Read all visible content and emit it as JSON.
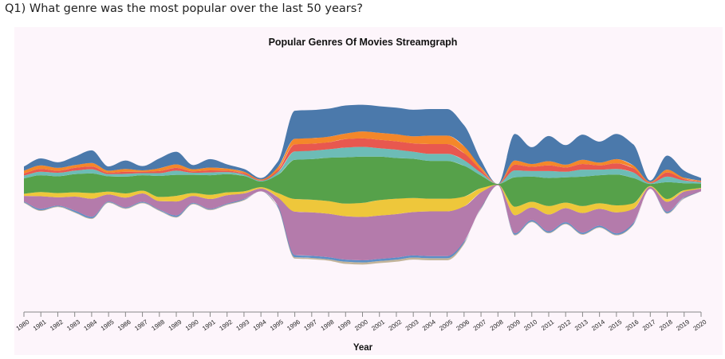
{
  "question": "Q1) What genre was the most popular over the last 50 years?",
  "chart_data": {
    "type": "streamgraph",
    "title": "Popular Genres Of Movies Streamgraph",
    "xlabel": "Year",
    "ylabel": "",
    "legend": "none",
    "grid": false,
    "x": [
      1980,
      1981,
      1982,
      1983,
      1984,
      1985,
      1986,
      1987,
      1988,
      1989,
      1990,
      1991,
      1992,
      1993,
      1994,
      1995,
      1996,
      1997,
      1998,
      1999,
      2000,
      2001,
      2002,
      2003,
      2004,
      2005,
      2006,
      2007,
      2008,
      2009,
      2010,
      2011,
      2012,
      2013,
      2014,
      2015,
      2016,
      2017,
      2018,
      2019,
      2020
    ],
    "series": [
      {
        "color": "#c2b49a",
        "values": [
          1,
          1,
          1,
          1,
          1,
          1,
          1,
          1,
          1,
          1,
          1,
          1,
          1,
          1,
          0,
          1,
          2,
          2,
          2,
          3,
          3,
          3,
          3,
          3,
          3,
          3,
          2,
          1,
          0,
          1,
          1,
          1,
          1,
          1,
          1,
          1,
          1,
          0,
          1,
          1,
          0
        ]
      },
      {
        "color": "#5b8fc7",
        "values": [
          1,
          2,
          1,
          2,
          2,
          1,
          1,
          1,
          1,
          2,
          1,
          1,
          1,
          1,
          0,
          2,
          3,
          3,
          3,
          3,
          3,
          3,
          3,
          3,
          3,
          3,
          2,
          1,
          0,
          2,
          2,
          2,
          2,
          2,
          2,
          2,
          2,
          0,
          2,
          1,
          0
        ]
      },
      {
        "color": "#b47bab",
        "values": [
          8,
          18,
          12,
          20,
          26,
          10,
          14,
          12,
          12,
          20,
          10,
          14,
          12,
          8,
          4,
          12,
          62,
          62,
          62,
          62,
          62,
          62,
          62,
          62,
          64,
          64,
          50,
          22,
          1,
          26,
          18,
          24,
          20,
          28,
          24,
          30,
          20,
          3,
          14,
          8,
          4
        ]
      },
      {
        "color": "#eec73b",
        "values": [
          3,
          6,
          6,
          6,
          8,
          4,
          6,
          4,
          6,
          8,
          4,
          6,
          4,
          3,
          2,
          6,
          18,
          18,
          18,
          18,
          20,
          22,
          22,
          20,
          18,
          18,
          14,
          6,
          0,
          12,
          8,
          12,
          8,
          10,
          8,
          10,
          8,
          1,
          4,
          2,
          1
        ]
      },
      {
        "color": "#56a14a",
        "values": [
          22,
          24,
          24,
          26,
          28,
          22,
          24,
          22,
          30,
          30,
          26,
          28,
          26,
          22,
          8,
          26,
          56,
          58,
          62,
          66,
          66,
          62,
          58,
          56,
          54,
          54,
          44,
          18,
          1,
          42,
          36,
          40,
          36,
          42,
          40,
          44,
          36,
          3,
          24,
          10,
          6
        ]
      },
      {
        "color": "#6dbcb6",
        "values": [
          4,
          5,
          5,
          5,
          6,
          3,
          4,
          3,
          4,
          6,
          3,
          4,
          3,
          2,
          1,
          4,
          12,
          12,
          12,
          14,
          14,
          12,
          12,
          10,
          10,
          10,
          8,
          4,
          0,
          10,
          8,
          10,
          8,
          10,
          8,
          8,
          8,
          1,
          8,
          4,
          2
        ]
      },
      {
        "color": "#e8584f",
        "values": [
          3,
          4,
          3,
          4,
          4,
          2,
          3,
          2,
          3,
          4,
          2,
          3,
          2,
          2,
          1,
          3,
          10,
          10,
          10,
          12,
          12,
          12,
          12,
          12,
          14,
          14,
          10,
          4,
          0,
          8,
          6,
          8,
          6,
          8,
          6,
          8,
          6,
          1,
          6,
          2,
          1
        ]
      },
      {
        "color": "#f4872a",
        "values": [
          4,
          5,
          4,
          4,
          5,
          3,
          4,
          2,
          4,
          5,
          3,
          4,
          3,
          2,
          1,
          4,
          8,
          8,
          8,
          8,
          10,
          10,
          10,
          10,
          12,
          12,
          10,
          4,
          0,
          6,
          4,
          6,
          4,
          6,
          4,
          6,
          4,
          1,
          4,
          2,
          1
        ]
      },
      {
        "color": "#4b79ab",
        "values": [
          6,
          10,
          8,
          12,
          18,
          6,
          12,
          6,
          14,
          18,
          6,
          12,
          6,
          4,
          2,
          8,
          40,
          40,
          40,
          40,
          38,
          38,
          38,
          38,
          38,
          38,
          30,
          10,
          0,
          38,
          24,
          36,
          28,
          36,
          30,
          36,
          30,
          2,
          20,
          10,
          4
        ]
      }
    ]
  }
}
